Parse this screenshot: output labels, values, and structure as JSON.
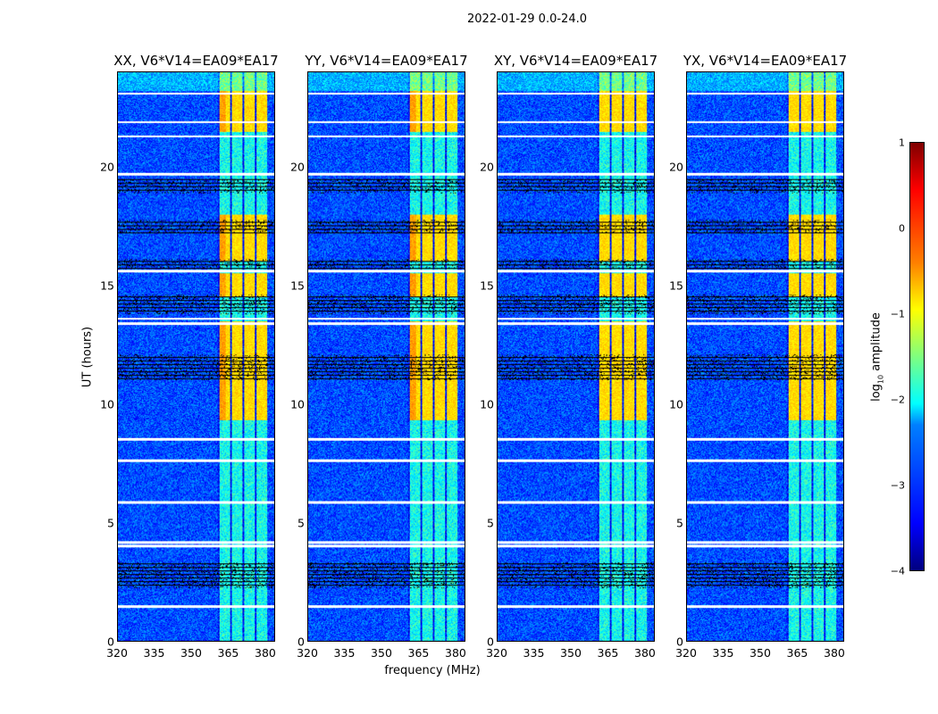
{
  "chart_data": {
    "type": "heatmap",
    "title": "2022-01-29 0.0-24.0",
    "xlabel": "frequency (MHz)",
    "ylabel": "UT (hours)",
    "xlim": [
      320,
      384
    ],
    "ylim": [
      0,
      24
    ],
    "xticks": [
      "320",
      "335",
      "350",
      "365",
      "380"
    ],
    "yticks": [
      "0",
      "5",
      "10",
      "15",
      "20"
    ],
    "panels": [
      {
        "title": "XX, V6*V14=EA09*EA17"
      },
      {
        "title": "YY, V6*V14=EA09*EA17"
      },
      {
        "title": "XY, V6*V14=EA09*EA17"
      },
      {
        "title": "YX, V6*V14=EA09*EA17"
      }
    ],
    "colorbar": {
      "label_main": "log",
      "label_sub": "10",
      "label_rest": " amplitude",
      "range": [
        -4,
        1
      ],
      "ticks": [
        "1",
        "0",
        "−1",
        "−2",
        "−3",
        "−4"
      ],
      "colormap": "jet"
    },
    "background_log_amplitude": -3,
    "rfi_band_mhz": [
      361,
      381
    ],
    "rfi_active_hours": [
      [
        9.3,
        13.5
      ],
      [
        14.5,
        15.5
      ],
      [
        16.0,
        18.0
      ],
      [
        21.5,
        23.2
      ]
    ],
    "flagged_white_hours": [
      1.45,
      4.0,
      4.15,
      5.85,
      7.6,
      8.5,
      13.4,
      13.6,
      15.6,
      19.7,
      21.3,
      21.9,
      23.1
    ],
    "flagged_black_hours": [
      [
        2.2,
        3.3
      ],
      [
        11.0,
        12.1
      ],
      [
        13.8,
        14.6
      ],
      [
        15.7,
        16.1
      ],
      [
        17.2,
        17.75
      ],
      [
        18.9,
        19.5
      ]
    ]
  }
}
